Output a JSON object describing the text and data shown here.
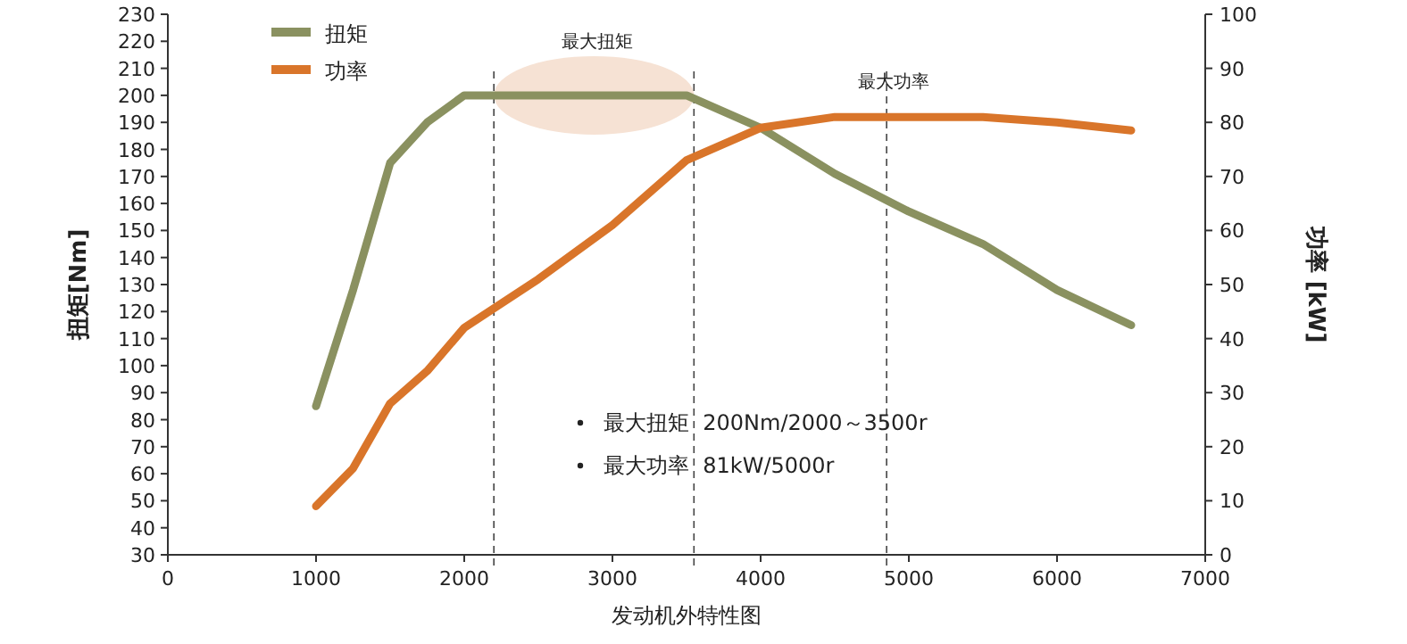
{
  "chart_data": {
    "type": "line",
    "xlabel": "发动机外特性图",
    "ylabel": "扭矩[Nm]",
    "y2label": "功率 [kW]",
    "x": [
      1000,
      1250,
      1500,
      1750,
      2000,
      2500,
      3000,
      3500,
      4000,
      4500,
      5000,
      5500,
      6000,
      6500
    ],
    "series": [
      {
        "name": "扭矩",
        "color": "#8a9160",
        "values": [
          85,
          128,
          175,
          190,
          200,
          200,
          200,
          200,
          188,
          171,
          157,
          145,
          128,
          115
        ]
      },
      {
        "name": "功率",
        "color": "#d9752a",
        "axis": "y2",
        "values": [
          9,
          16,
          28,
          34,
          42,
          51,
          61,
          73,
          79,
          81,
          81,
          81,
          80,
          78.5
        ]
      }
    ],
    "xlim": [
      0,
      7000
    ],
    "xticks": [
      0,
      1000,
      2000,
      3000,
      4000,
      5000,
      6000,
      7000
    ],
    "ylim": [
      30,
      230
    ],
    "yticks": [
      30,
      40,
      50,
      60,
      70,
      80,
      90,
      100,
      110,
      120,
      130,
      140,
      150,
      160,
      170,
      180,
      190,
      200,
      210,
      220,
      230
    ],
    "y2lim": [
      0,
      100
    ],
    "y2ticks": [
      0,
      10,
      20,
      30,
      40,
      50,
      60,
      70,
      80,
      90,
      100
    ],
    "ref_lines": [
      {
        "axis": "x",
        "value": 2200,
        "line_style": "dashed"
      },
      {
        "axis": "x",
        "value": 3550,
        "line_style": "dashed"
      },
      {
        "axis": "x",
        "value": 4850,
        "line_style": "dashed"
      }
    ],
    "bands": [
      {
        "axis": "x",
        "from": 2200,
        "to": 3550,
        "color": "#f6e2d4"
      }
    ],
    "annotations": [
      {
        "text": "最大扭矩",
        "x": 2900,
        "y": 200
      },
      {
        "text": "最大功率",
        "x": 4900,
        "y": 197
      },
      "最大扭矩  200Nm/2000～3500r",
      "最大功率  81kW/5000r"
    ],
    "legend": "top left",
    "grid": false,
    "marker": "none",
    "line_style": "solid"
  }
}
